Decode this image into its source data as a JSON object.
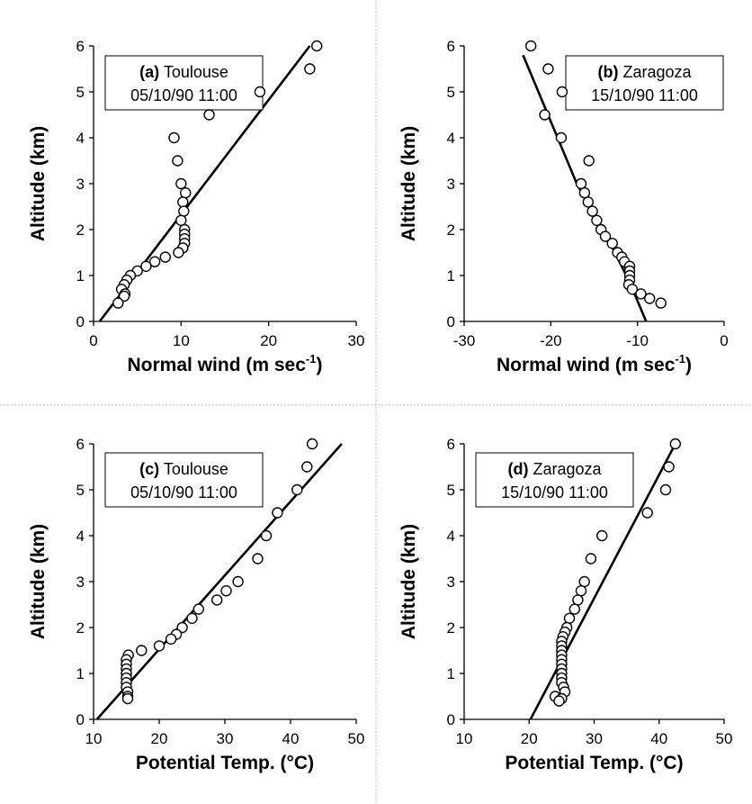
{
  "chart_data": [
    {
      "type": "scatter",
      "xlabel": "Normal wind (m sec",
      "xlabel_sup": "-1",
      "xlabel_close": ")",
      "ylabel": "Altitude (km)",
      "xlim": [
        0,
        30
      ],
      "ylim": [
        0,
        6
      ],
      "xticks": [
        "0",
        "10",
        "20",
        "30"
      ],
      "yticks": [
        "0",
        "1",
        "2",
        "3",
        "4",
        "5",
        "6"
      ],
      "legend": {
        "id": "(a)",
        "place": "Toulouse",
        "time": "05/10/90 11:00"
      },
      "points": [
        [
          25.5,
          6.0
        ],
        [
          24.7,
          5.5
        ],
        [
          19.0,
          5.0
        ],
        [
          13.2,
          4.5
        ],
        [
          9.2,
          4.0
        ],
        [
          9.6,
          3.5
        ],
        [
          10.0,
          3.0
        ],
        [
          10.5,
          2.8
        ],
        [
          10.2,
          2.6
        ],
        [
          10.3,
          2.4
        ],
        [
          10.0,
          2.2
        ],
        [
          10.4,
          2.0
        ],
        [
          10.4,
          1.9
        ],
        [
          10.4,
          1.8
        ],
        [
          10.4,
          1.7
        ],
        [
          10.2,
          1.6
        ],
        [
          9.7,
          1.5
        ],
        [
          8.2,
          1.4
        ],
        [
          7.0,
          1.3
        ],
        [
          6.0,
          1.2
        ],
        [
          5.0,
          1.1
        ],
        [
          4.2,
          1.0
        ],
        [
          3.8,
          0.9
        ],
        [
          3.5,
          0.8
        ],
        [
          3.2,
          0.7
        ],
        [
          3.6,
          0.6
        ],
        [
          3.5,
          0.55
        ],
        [
          2.8,
          0.4
        ]
      ],
      "fit_line": [
        [
          0.7,
          0.0
        ],
        [
          24.7,
          6.0
        ]
      ]
    },
    {
      "type": "scatter",
      "xlabel": "Normal wind (m sec",
      "xlabel_sup": "-1",
      "xlabel_close": ")",
      "ylabel": "Altitude (km)",
      "xlim": [
        -30,
        0
      ],
      "ylim": [
        0,
        6
      ],
      "xticks": [
        "-30",
        "-20",
        "-10",
        "0"
      ],
      "yticks": [
        "0",
        "1",
        "2",
        "3",
        "4",
        "5",
        "6"
      ],
      "legend": {
        "id": "(b)",
        "place": "Zaragoza",
        "time": "15/10/90 11:00"
      },
      "points": [
        [
          -22.3,
          6.0
        ],
        [
          -20.3,
          5.5
        ],
        [
          -18.7,
          5.0
        ],
        [
          -20.7,
          4.5
        ],
        [
          -18.8,
          4.0
        ],
        [
          -15.6,
          3.5
        ],
        [
          -16.5,
          3.0
        ],
        [
          -16.1,
          2.8
        ],
        [
          -15.7,
          2.6
        ],
        [
          -15.2,
          2.4
        ],
        [
          -14.7,
          2.2
        ],
        [
          -14.2,
          2.0
        ],
        [
          -13.7,
          1.85
        ],
        [
          -12.9,
          1.7
        ],
        [
          -12.3,
          1.5
        ],
        [
          -11.8,
          1.4
        ],
        [
          -11.5,
          1.3
        ],
        [
          -10.9,
          1.2
        ],
        [
          -10.9,
          1.1
        ],
        [
          -10.9,
          1.0
        ],
        [
          -10.9,
          0.9
        ],
        [
          -11.0,
          0.8
        ],
        [
          -10.6,
          0.7
        ],
        [
          -9.6,
          0.6
        ],
        [
          -8.6,
          0.5
        ],
        [
          -7.3,
          0.4
        ]
      ],
      "fit_line": [
        [
          -23.2,
          5.8
        ],
        [
          -17.0,
          3.0
        ],
        [
          -13.0,
          1.65
        ],
        [
          -10.9,
          0.85
        ],
        [
          -9.0,
          0.0
        ]
      ]
    },
    {
      "type": "scatter",
      "xlabel": "Potential Temp. (°C)",
      "ylabel": "Altitude (km)",
      "xlim": [
        10,
        50
      ],
      "ylim": [
        0,
        6
      ],
      "xticks": [
        "10",
        "20",
        "30",
        "40",
        "50"
      ],
      "yticks": [
        "0",
        "1",
        "2",
        "3",
        "4",
        "5",
        "6"
      ],
      "legend": {
        "id": "(c)",
        "place": "Toulouse",
        "time": "05/10/90 11:00"
      },
      "points": [
        [
          43.3,
          6.0
        ],
        [
          42.5,
          5.5
        ],
        [
          41.0,
          5.0
        ],
        [
          38.0,
          4.5
        ],
        [
          36.3,
          4.0
        ],
        [
          35.0,
          3.5
        ],
        [
          32.0,
          3.0
        ],
        [
          30.2,
          2.8
        ],
        [
          28.8,
          2.6
        ],
        [
          26.0,
          2.4
        ],
        [
          25.0,
          2.2
        ],
        [
          23.5,
          2.0
        ],
        [
          22.6,
          1.85
        ],
        [
          21.8,
          1.75
        ],
        [
          20.0,
          1.6
        ],
        [
          17.3,
          1.5
        ],
        [
          15.3,
          1.4
        ],
        [
          15.0,
          1.3
        ],
        [
          15.0,
          1.2
        ],
        [
          15.0,
          1.1
        ],
        [
          15.0,
          1.0
        ],
        [
          15.0,
          0.9
        ],
        [
          15.0,
          0.8
        ],
        [
          15.0,
          0.7
        ],
        [
          15.2,
          0.6
        ],
        [
          15.2,
          0.5
        ],
        [
          15.2,
          0.45
        ]
      ],
      "fit_line": [
        [
          10.5,
          0.0
        ],
        [
          47.8,
          6.0
        ]
      ]
    },
    {
      "type": "scatter",
      "xlabel": "Potential Temp. (°C)",
      "ylabel": "Altitude (km)",
      "xlim": [
        10,
        50
      ],
      "ylim": [
        0,
        6
      ],
      "xticks": [
        "10",
        "20",
        "30",
        "40",
        "50"
      ],
      "yticks": [
        "0",
        "1",
        "2",
        "3",
        "4",
        "5",
        "6"
      ],
      "legend": {
        "id": "(d)",
        "place": "Zaragoza",
        "time": "15/10/90 11:00"
      },
      "points": [
        [
          42.5,
          6.0
        ],
        [
          41.5,
          5.5
        ],
        [
          41.0,
          5.0
        ],
        [
          38.2,
          4.5
        ],
        [
          31.2,
          4.0
        ],
        [
          29.5,
          3.5
        ],
        [
          28.5,
          3.0
        ],
        [
          28.0,
          2.8
        ],
        [
          27.5,
          2.6
        ],
        [
          27.0,
          2.4
        ],
        [
          26.2,
          2.2
        ],
        [
          25.8,
          2.0
        ],
        [
          25.5,
          1.9
        ],
        [
          25.2,
          1.8
        ],
        [
          25.0,
          1.7
        ],
        [
          25.0,
          1.6
        ],
        [
          25.0,
          1.5
        ],
        [
          25.0,
          1.4
        ],
        [
          25.0,
          1.3
        ],
        [
          25.0,
          1.2
        ],
        [
          25.0,
          1.1
        ],
        [
          25.0,
          1.0
        ],
        [
          25.0,
          0.9
        ],
        [
          25.0,
          0.8
        ],
        [
          25.3,
          0.7
        ],
        [
          25.5,
          0.6
        ],
        [
          24.0,
          0.5
        ],
        [
          25.0,
          0.45
        ],
        [
          24.6,
          0.4
        ]
      ],
      "fit_line": [
        [
          20.2,
          0.0
        ],
        [
          42.5,
          6.0
        ]
      ]
    }
  ]
}
